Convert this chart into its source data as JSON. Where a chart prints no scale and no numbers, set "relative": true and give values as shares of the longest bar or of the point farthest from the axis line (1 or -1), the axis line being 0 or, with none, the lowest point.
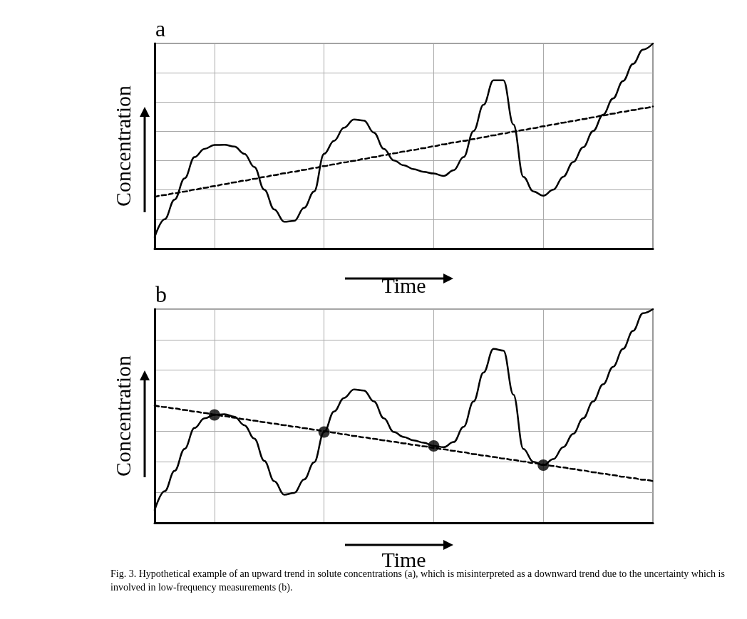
{
  "chart_data": [
    {
      "type": "line",
      "title": "a",
      "xlabel": "Time",
      "ylabel": "Concentration",
      "relative": true,
      "grid": true,
      "marker": "none",
      "categories": [
        null,
        null,
        null,
        null,
        null,
        null,
        null,
        null,
        null,
        null,
        null,
        null,
        null,
        null,
        null,
        null,
        null,
        null,
        null,
        null,
        null,
        null,
        null,
        null,
        null,
        null,
        null,
        null,
        null,
        null,
        null,
        null,
        null,
        null,
        null,
        null,
        null,
        null,
        null,
        null,
        null,
        null,
        null,
        null,
        null,
        null,
        null,
        null,
        null,
        null,
        null
      ],
      "series": [
        {
          "color": "#000000",
          "line_style": "solid",
          "values": [
            0.056,
            0.143,
            0.239,
            0.342,
            0.446,
            0.486,
            0.505,
            0.506,
            0.497,
            0.462,
            0.398,
            0.287,
            0.191,
            0.131,
            0.135,
            0.199,
            0.279,
            0.462,
            0.525,
            0.589,
            0.629,
            0.624,
            0.565,
            0.486,
            0.43,
            0.406,
            0.387,
            0.374,
            0.366,
            0.354,
            0.382,
            0.446,
            0.573,
            0.701,
            0.82,
            0.82,
            0.605,
            0.35,
            0.279,
            0.258,
            0.287,
            0.35,
            0.422,
            0.494,
            0.573,
            0.653,
            0.732,
            0.817,
            0.9,
            0.97,
            1
          ]
        },
        {
          "color": "#000000",
          "line_style": "dashed",
          "values": [
            0.252,
            0.261,
            0.27,
            0.278,
            0.287,
            0.296,
            0.305,
            0.314,
            0.323,
            0.331,
            0.34,
            0.349,
            0.358,
            0.367,
            0.375,
            0.384,
            0.393,
            0.402,
            0.411,
            0.42,
            0.428,
            0.437,
            0.446,
            0.455,
            0.464,
            0.473,
            0.481,
            0.49,
            0.499,
            0.508,
            0.517,
            0.525,
            0.534,
            0.543,
            0.552,
            0.561,
            0.57,
            0.578,
            0.587,
            0.596,
            0.605,
            0.614,
            0.622,
            0.631,
            0.64,
            0.649,
            0.658,
            0.667,
            0.675,
            0.684,
            0.693
          ]
        }
      ]
    },
    {
      "type": "line",
      "title": "b",
      "xlabel": "Time",
      "ylabel": "Concentration",
      "relative": true,
      "grid": true,
      "marker": "none",
      "annotations": [
        "Fig. 3. Hypothetical example of an upward trend in solute concentrations (a), which is misinterpreted as a downward trend due to the uncertainty which is involved in low-frequency measurements (b)."
      ],
      "categories": [
        null,
        null,
        null,
        null,
        null,
        null,
        null,
        null,
        null,
        null,
        null,
        null,
        null,
        null,
        null,
        null,
        null,
        null,
        null,
        null,
        null,
        null,
        null,
        null,
        null,
        null,
        null,
        null,
        null,
        null,
        null,
        null,
        null,
        null,
        null,
        null,
        null,
        null,
        null,
        null,
        null,
        null,
        null,
        null,
        null,
        null,
        null,
        null,
        null,
        null,
        null
      ],
      "series": [
        {
          "color": "#000000",
          "line_style": "solid",
          "values": [
            0.06,
            0.148,
            0.243,
            0.346,
            0.444,
            0.489,
            0.505,
            0.508,
            0.497,
            0.457,
            0.394,
            0.29,
            0.195,
            0.132,
            0.14,
            0.203,
            0.283,
            0.425,
            0.521,
            0.584,
            0.624,
            0.619,
            0.568,
            0.489,
            0.425,
            0.402,
            0.386,
            0.375,
            0.36,
            0.354,
            0.378,
            0.449,
            0.568,
            0.703,
            0.814,
            0.806,
            0.6,
            0.346,
            0.286,
            0.27,
            0.298,
            0.354,
            0.417,
            0.489,
            0.568,
            0.648,
            0.73,
            0.814,
            0.898,
            0.981,
            1
          ]
        },
        {
          "color": "#000000",
          "line_style": "dashed",
          "values": [
            0.549,
            0.542,
            0.535,
            0.528,
            0.521,
            0.514,
            0.507,
            0.499,
            0.492,
            0.485,
            0.478,
            0.471,
            0.464,
            0.457,
            0.45,
            0.443,
            0.436,
            0.429,
            0.422,
            0.414,
            0.407,
            0.4,
            0.393,
            0.386,
            0.379,
            0.372,
            0.365,
            0.358,
            0.351,
            0.344,
            0.337,
            0.33,
            0.322,
            0.315,
            0.308,
            0.301,
            0.294,
            0.287,
            0.28,
            0.273,
            0.266,
            0.259,
            0.252,
            0.245,
            0.237,
            0.23,
            0.223,
            0.216,
            0.209,
            0.202,
            0.195
          ]
        },
        {
          "type": "scatter",
          "color": "#000000",
          "marker": "circle",
          "values": [
            null,
            null,
            null,
            null,
            null,
            null,
            0.505,
            null,
            null,
            null,
            null,
            null,
            null,
            null,
            null,
            null,
            null,
            0.425,
            null,
            null,
            null,
            null,
            null,
            null,
            null,
            null,
            null,
            null,
            0.36,
            null,
            null,
            null,
            null,
            null,
            null,
            null,
            null,
            null,
            null,
            0.27,
            null,
            null,
            null,
            null,
            null,
            null,
            null,
            null,
            null,
            null,
            null
          ]
        }
      ]
    }
  ]
}
